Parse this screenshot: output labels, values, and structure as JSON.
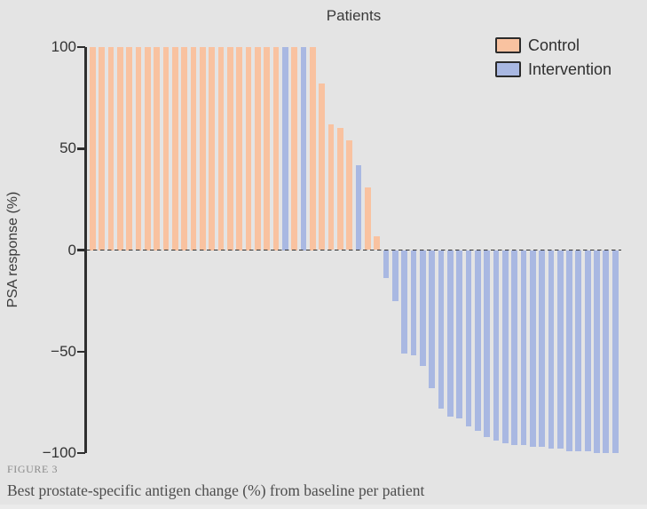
{
  "figure": {
    "label": "FIGURE 3",
    "caption": "Best prostate-specific antigen change (%) from baseline per patient"
  },
  "chart_data": {
    "type": "bar",
    "title": "Patients",
    "xlabel": "",
    "ylabel": "PSA response (%)",
    "ylim": [
      -100,
      100
    ],
    "ytick_values": [
      100,
      50,
      0,
      -50,
      -100
    ],
    "yticks": [
      "100",
      "50",
      "0",
      "−50",
      "−100"
    ],
    "grid": "off",
    "zero_line": "dashed",
    "legend_position": "top-right",
    "colors": {
      "background": "#e4e4e4",
      "axis": "#2e2e2e",
      "text": "#3a3a3a",
      "control": "#f9c2a0",
      "intervention": "#a9b8e2"
    },
    "series": [
      {
        "name": "Control",
        "color": "#f9c2a0"
      },
      {
        "name": "Intervention",
        "color": "#a9b8e2"
      }
    ],
    "bars": [
      {
        "group": "Control",
        "value": 100
      },
      {
        "group": "Control",
        "value": 100
      },
      {
        "group": "Control",
        "value": 100
      },
      {
        "group": "Control",
        "value": 100
      },
      {
        "group": "Control",
        "value": 100
      },
      {
        "group": "Control",
        "value": 100
      },
      {
        "group": "Control",
        "value": 100
      },
      {
        "group": "Control",
        "value": 100
      },
      {
        "group": "Control",
        "value": 100
      },
      {
        "group": "Control",
        "value": 100
      },
      {
        "group": "Control",
        "value": 100
      },
      {
        "group": "Control",
        "value": 100
      },
      {
        "group": "Control",
        "value": 100
      },
      {
        "group": "Control",
        "value": 100
      },
      {
        "group": "Control",
        "value": 100
      },
      {
        "group": "Control",
        "value": 100
      },
      {
        "group": "Control",
        "value": 100
      },
      {
        "group": "Control",
        "value": 100
      },
      {
        "group": "Control",
        "value": 100
      },
      {
        "group": "Control",
        "value": 100
      },
      {
        "group": "Control",
        "value": 100
      },
      {
        "group": "Intervention",
        "value": 100
      },
      {
        "group": "Control",
        "value": 100
      },
      {
        "group": "Intervention",
        "value": 100
      },
      {
        "group": "Control",
        "value": 100
      },
      {
        "group": "Control",
        "value": 82
      },
      {
        "group": "Control",
        "value": 62
      },
      {
        "group": "Control",
        "value": 60
      },
      {
        "group": "Control",
        "value": 54
      },
      {
        "group": "Intervention",
        "value": 42
      },
      {
        "group": "Control",
        "value": 31
      },
      {
        "group": "Control",
        "value": 7
      },
      {
        "group": "Intervention",
        "value": -14
      },
      {
        "group": "Intervention",
        "value": -25
      },
      {
        "group": "Intervention",
        "value": -51
      },
      {
        "group": "Intervention",
        "value": -52
      },
      {
        "group": "Intervention",
        "value": -57
      },
      {
        "group": "Intervention",
        "value": -68
      },
      {
        "group": "Intervention",
        "value": -78
      },
      {
        "group": "Intervention",
        "value": -82
      },
      {
        "group": "Intervention",
        "value": -83
      },
      {
        "group": "Intervention",
        "value": -87
      },
      {
        "group": "Intervention",
        "value": -89
      },
      {
        "group": "Intervention",
        "value": -92
      },
      {
        "group": "Intervention",
        "value": -94
      },
      {
        "group": "Intervention",
        "value": -95
      },
      {
        "group": "Intervention",
        "value": -96
      },
      {
        "group": "Intervention",
        "value": -96
      },
      {
        "group": "Intervention",
        "value": -97
      },
      {
        "group": "Intervention",
        "value": -97
      },
      {
        "group": "Intervention",
        "value": -98
      },
      {
        "group": "Intervention",
        "value": -98
      },
      {
        "group": "Intervention",
        "value": -99
      },
      {
        "group": "Intervention",
        "value": -99
      },
      {
        "group": "Intervention",
        "value": -99
      },
      {
        "group": "Intervention",
        "value": -100
      },
      {
        "group": "Intervention",
        "value": -100
      },
      {
        "group": "Intervention",
        "value": -100
      }
    ]
  }
}
